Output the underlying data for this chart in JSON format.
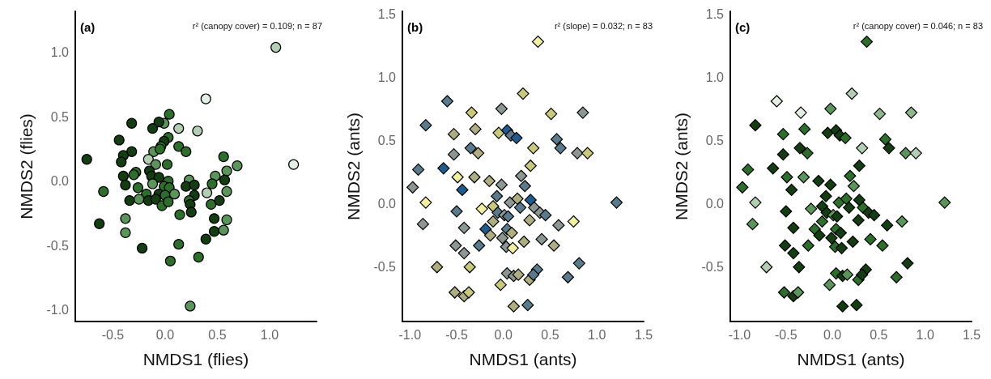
{
  "chart_data": [
    {
      "type": "scatter",
      "marker": "circle",
      "xlabel": "NMDS1 (flies)",
      "ylabel": "NMDS2 (flies)",
      "annotations": [
        "(a)",
        "r² (canopy cover) = 0.109; n = 87"
      ],
      "xlim": [
        -0.86,
        1.45
      ],
      "ylim": [
        -1.09,
        1.32
      ],
      "xticks": [
        {
          "value": -0.5,
          "label": "-0.5"
        },
        {
          "value": 0,
          "label": "0.0"
        },
        {
          "value": 0.5,
          "label": "0.5"
        },
        {
          "value": 1,
          "label": "1.0"
        }
      ],
      "yticks": [
        {
          "value": -1,
          "label": "-1.0"
        },
        {
          "value": -0.5,
          "label": "-0.5"
        },
        {
          "value": 0,
          "label": "0.0"
        },
        {
          "value": 0.5,
          "label": "0.5"
        },
        {
          "value": 1,
          "label": "1.0"
        }
      ],
      "x": [
        1.06,
        0.39,
        1.23,
        0.04,
        -0.01,
        -0.06,
        -0.32,
        -0.12,
        0.13,
        0.31,
        -0.44,
        0.03,
        -0.01,
        -0.04,
        0.13,
        0.2,
        -0.11,
        -0.05,
        -0.32,
        -0.4,
        -0.16,
        -0.42,
        -0.75,
        -0.09,
        0.02,
        0.56,
        0.69,
        0.59,
        0.48,
        0.57,
        -0.28,
        -0.4,
        -0.3,
        -0.15,
        -0.13,
        -0.06,
        0.03,
        -0.12,
        -0.38,
        -0.26,
        -0.01,
        0.04,
        0.23,
        0.2,
        0.28,
        0.45,
        0.4,
        0.59,
        -0.59,
        -0.18,
        -0.06,
        0.0,
        0.09,
        0.28,
        -0.34,
        -0.25,
        -0.16,
        -0.09,
        -0.03,
        0.03,
        0.23,
        0.24,
        0.44,
        0.52,
        0.25,
        0.14,
        -0.38,
        0.47,
        0.59,
        -0.63,
        -0.38,
        0.47,
        0.56,
        0.39,
        -0.22,
        0.13,
        0.32,
        0.05,
        0.24
      ],
      "values": [
        1.04,
        0.64,
        0.13,
        0.52,
        0.45,
        0.46,
        0.45,
        0.41,
        0.41,
        0.39,
        0.32,
        0.34,
        0.31,
        0.27,
        0.27,
        0.23,
        0.23,
        0.25,
        0.23,
        0.2,
        0.17,
        0.15,
        0.17,
        0.13,
        0.13,
        0.19,
        0.12,
        0.08,
        0.04,
        0.01,
        0.07,
        0.04,
        0.05,
        0.08,
        0.04,
        0.03,
        0.0,
        -0.02,
        -0.03,
        -0.05,
        -0.04,
        -0.05,
        0.01,
        -0.04,
        -0.03,
        -0.02,
        -0.09,
        -0.08,
        -0.08,
        -0.1,
        -0.1,
        -0.11,
        -0.1,
        -0.11,
        -0.15,
        -0.14,
        -0.15,
        -0.14,
        -0.19,
        -0.16,
        -0.15,
        -0.18,
        -0.18,
        -0.15,
        -0.24,
        -0.26,
        -0.29,
        -0.29,
        -0.3,
        -0.33,
        -0.4,
        -0.39,
        -0.38,
        -0.45,
        -0.52,
        -0.49,
        -0.59,
        -0.62,
        -0.97
      ],
      "colors": [
        "#b4ceb4",
        "#e4eee4",
        "#e4eee4",
        "#2d6e2d",
        "#5c955c",
        "#143d14",
        "#143d14",
        "#143d14",
        "#b4ceb4",
        "#b4ceb4",
        "#143d14",
        "#2d6e2d",
        "#143d14",
        "#2d6e2d",
        "#2d6e2d",
        "#2d6e2d",
        "#5c955c",
        "#2d6e2d",
        "#143d14",
        "#143d14",
        "#b4ceb4",
        "#143d14",
        "#143d14",
        "#5c955c",
        "#2d6e2d",
        "#2d6e2d",
        "#5c955c",
        "#5c955c",
        "#5c955c",
        "#143d14",
        "#2d6e2d",
        "#143d14",
        "#2d6e2d",
        "#143d14",
        "#143d14",
        "#143d14",
        "#2d6e2d",
        "#5c955c",
        "#143d14",
        "#2d6e2d",
        "#2d6e2d",
        "#2d6e2d",
        "#5c955c",
        "#143d14",
        "#143d14",
        "#2d6e2d",
        "#b4ceb4",
        "#5c955c",
        "#2d6e2d",
        "#2d6e2d",
        "#143d14",
        "#2d6e2d",
        "#5c955c",
        "#143d14",
        "#143d14",
        "#5c955c",
        "#143d14",
        "#143d14",
        "#2d6e2d",
        "#2d6e2d",
        "#2d6e2d",
        "#143d14",
        "#2d6e2d",
        "#143d14",
        "#143d14",
        "#2d6e2d",
        "#5c955c",
        "#143d14",
        "#5c955c",
        "#143d14",
        "#5c955c",
        "#143d14",
        "#5c955c",
        "#143d14",
        "#143d14",
        "#2d6e2d",
        "#2d6e2d",
        "#2d6e2d",
        "#5c955c"
      ]
    },
    {
      "type": "scatter",
      "marker": "diamond",
      "xlabel": "NMDS1 (ants)",
      "ylabel": "NMDS2 (ants)",
      "annotations": [
        "(b)",
        "r² (slope) = 0.032; n = 83"
      ],
      "xlim": [
        -1.08,
        1.5
      ],
      "ylim": [
        -0.93,
        1.52
      ],
      "xticks": [
        {
          "value": -1,
          "label": "-1.0"
        },
        {
          "value": -0.5,
          "label": "-0.5"
        },
        {
          "value": 0,
          "label": "0.0"
        },
        {
          "value": 0.5,
          "label": "0.5"
        },
        {
          "value": 1,
          "label": "1.0"
        },
        {
          "value": 1.5,
          "label": "1.5"
        }
      ],
      "yticks": [
        {
          "value": -0.5,
          "label": "-0.5"
        },
        {
          "value": 0,
          "label": "0.0"
        },
        {
          "value": 0.5,
          "label": "0.5"
        },
        {
          "value": 1,
          "label": "1.0"
        },
        {
          "value": 1.5,
          "label": "1.5"
        }
      ],
      "x": [
        0.37,
        0.21,
        -0.6,
        -0.02,
        -0.34,
        0.51,
        0.85,
        -0.83,
        -0.3,
        -0.53,
        -0.05,
        0.04,
        0.08,
        0.14,
        0.57,
        0.61,
        -0.35,
        -0.27,
        0.32,
        -0.53,
        0.79,
        0.9,
        0.29,
        -0.91,
        -0.64,
        -0.49,
        -0.31,
        -0.15,
        0.19,
        -0.02,
        0.23,
        -0.97,
        -0.44,
        -0.07,
        -0.83,
        0.07,
        0.15,
        0.29,
        1.21,
        -0.5,
        -0.23,
        -0.11,
        -0.06,
        0.18,
        0.33,
        0.39,
        0.45,
        0.01,
        0.05,
        -0.86,
        -0.11,
        0.28,
        0.59,
        0.75,
        -0.42,
        -0.19,
        0.04,
        -0.14,
        0.09,
        -0.01,
        0.41,
        -0.51,
        -0.26,
        0.03,
        0.1,
        0.22,
        0.54,
        -0.42,
        -0.71,
        -0.36,
        0.81,
        0.04,
        0.11,
        0.16,
        0.28,
        0.36,
        0.32,
        0.69,
        -0.03,
        -0.52,
        -0.42,
        -0.37,
        0.11,
        0.26
      ],
      "values": [
        1.28,
        0.87,
        0.81,
        0.75,
        0.72,
        0.71,
        0.72,
        0.62,
        0.59,
        0.55,
        0.56,
        0.58,
        0.54,
        0.52,
        0.51,
        0.44,
        0.44,
        0.4,
        0.44,
        0.39,
        0.4,
        0.4,
        0.3,
        0.27,
        0.28,
        0.21,
        0.21,
        0.18,
        0.22,
        0.15,
        0.14,
        0.13,
        0.11,
        0.06,
        0.01,
        0.01,
        0.04,
        0.03,
        0.01,
        -0.06,
        -0.04,
        -0.02,
        -0.07,
        -0.03,
        -0.03,
        -0.07,
        -0.09,
        -0.09,
        -0.1,
        -0.16,
        -0.14,
        -0.13,
        -0.17,
        -0.14,
        -0.19,
        -0.2,
        -0.2,
        -0.25,
        -0.23,
        -0.27,
        -0.28,
        -0.33,
        -0.33,
        -0.34,
        -0.35,
        -0.3,
        -0.33,
        -0.39,
        -0.5,
        -0.5,
        -0.47,
        -0.55,
        -0.57,
        -0.56,
        -0.6,
        -0.52,
        -0.56,
        -0.58,
        -0.64,
        -0.7,
        -0.73,
        -0.7,
        -0.81,
        -0.8
      ],
      "colors": [
        "#f2f0a0",
        "#c9c97e",
        "#5b7b8c",
        "#8c9693",
        "#c9c97e",
        "#c9c97e",
        "#8c9693",
        "#5b7b8c",
        "#aeae82",
        "#aeae82",
        "#c9c97e",
        "#1f5b8c",
        "#5b7b8c",
        "#1f5b8c",
        "#5b7b8c",
        "#5b7b8c",
        "#5b7b8c",
        "#aeae82",
        "#c9c97e",
        "#8c9693",
        "#8c9693",
        "#c9c97e",
        "#c9c97e",
        "#5b7b8c",
        "#1f5b8c",
        "#f2f0a0",
        "#aeae82",
        "#aeae82",
        "#8c9693",
        "#8c9693",
        "#5b7b8c",
        "#8c9693",
        "#1f5b8c",
        "#5b7b8c",
        "#f2f0a0",
        "#8c9693",
        "#aeae82",
        "#1f5b8c",
        "#5b7b8c",
        "#5b7b8c",
        "#f2f0a0",
        "#c9c97e",
        "#5b7b8c",
        "#5b7b8c",
        "#8c9693",
        "#8c9693",
        "#5b7b8c",
        "#8c9693",
        "#5b7b8c",
        "#8c9693",
        "#aeae82",
        "#aeae82",
        "#8c9693",
        "#f2f0a0",
        "#8c9693",
        "#1f5b8c",
        "#5b7b8c",
        "#aeae82",
        "#aeae82",
        "#8c9693",
        "#8c9693",
        "#8c9693",
        "#5b7b8c",
        "#8c9693",
        "#f2f0a0",
        "#aeae82",
        "#aeae82",
        "#8c9693",
        "#aeae82",
        "#c9c97e",
        "#5b7b8c",
        "#8c9693",
        "#8c9693",
        "#aeae82",
        "#aeae82",
        "#5b7b8c",
        "#5b7b8c",
        "#5b7b8c",
        "#c9c97e",
        "#aeae82",
        "#aeae82",
        "#c9c97e",
        "#aeae82",
        "#5b7b8c"
      ]
    },
    {
      "type": "scatter",
      "marker": "diamond",
      "xlabel": "NMDS1 (ants)",
      "ylabel": "NMDS2 (ants)",
      "annotations": [
        "(c)",
        "r² (canopy cover) = 0.046; n = 83"
      ],
      "xlim": [
        -1.1,
        1.5
      ],
      "ylim": [
        -0.93,
        1.52
      ],
      "xticks": [
        {
          "value": -1,
          "label": "-1.0"
        },
        {
          "value": -0.5,
          "label": "-0.5"
        },
        {
          "value": 0,
          "label": "0.0"
        },
        {
          "value": 0.5,
          "label": "0.5"
        },
        {
          "value": 1,
          "label": "1.0"
        },
        {
          "value": 1.5,
          "label": "1.5"
        }
      ],
      "yticks": [
        {
          "value": -0.5,
          "label": "-0.5"
        },
        {
          "value": 0,
          "label": "0.0"
        },
        {
          "value": 0.5,
          "label": "0.5"
        },
        {
          "value": 1,
          "label": "1.0"
        },
        {
          "value": 1.5,
          "label": "1.5"
        }
      ],
      "x": [
        0.37,
        0.21,
        -0.6,
        -0.02,
        -0.34,
        0.51,
        0.85,
        -0.83,
        -0.3,
        -0.53,
        -0.05,
        0.04,
        0.08,
        0.14,
        0.57,
        0.61,
        -0.35,
        -0.27,
        0.32,
        -0.53,
        0.79,
        0.9,
        0.29,
        -0.91,
        -0.64,
        -0.49,
        -0.31,
        -0.15,
        0.19,
        -0.02,
        0.23,
        -0.97,
        -0.44,
        -0.07,
        -0.83,
        0.07,
        0.15,
        0.29,
        1.21,
        -0.5,
        -0.23,
        -0.11,
        -0.06,
        0.18,
        0.33,
        0.39,
        0.45,
        0.01,
        0.05,
        -0.86,
        -0.11,
        0.28,
        0.59,
        0.75,
        -0.42,
        -0.19,
        0.04,
        -0.14,
        0.09,
        -0.01,
        0.41,
        -0.51,
        -0.26,
        0.03,
        0.1,
        0.22,
        0.54,
        -0.42,
        -0.71,
        -0.36,
        0.81,
        0.04,
        0.11,
        0.16,
        0.28,
        0.36,
        0.32,
        0.69,
        -0.03,
        -0.52,
        -0.42,
        -0.37,
        0.11,
        0.26
      ],
      "values": [
        1.28,
        0.87,
        0.81,
        0.75,
        0.72,
        0.71,
        0.72,
        0.62,
        0.59,
        0.55,
        0.56,
        0.58,
        0.54,
        0.52,
        0.51,
        0.44,
        0.44,
        0.4,
        0.44,
        0.39,
        0.4,
        0.4,
        0.3,
        0.27,
        0.28,
        0.21,
        0.21,
        0.18,
        0.22,
        0.15,
        0.14,
        0.13,
        0.11,
        0.06,
        0.01,
        0.01,
        0.04,
        0.03,
        0.01,
        -0.06,
        -0.04,
        -0.02,
        -0.07,
        -0.03,
        -0.03,
        -0.07,
        -0.09,
        -0.09,
        -0.1,
        -0.16,
        -0.14,
        -0.13,
        -0.17,
        -0.14,
        -0.19,
        -0.2,
        -0.2,
        -0.25,
        -0.23,
        -0.27,
        -0.28,
        -0.33,
        -0.33,
        -0.34,
        -0.35,
        -0.3,
        -0.33,
        -0.39,
        -0.5,
        -0.5,
        -0.47,
        -0.55,
        -0.57,
        -0.56,
        -0.6,
        -0.52,
        -0.56,
        -0.58,
        -0.64,
        -0.7,
        -0.73,
        -0.7,
        -0.81,
        -0.8
      ],
      "colors": [
        "#2d6e2d",
        "#b4ceb4",
        "#e4eee4",
        "#5c955c",
        "#e4eee4",
        "#8fb58f",
        "#8fb58f",
        "#143d14",
        "#2d6e2d",
        "#2d6e2d",
        "#143d14",
        "#143d14",
        "#143d14",
        "#2d6e2d",
        "#2d6e2d",
        "#143d14",
        "#143d14",
        "#2d6e2d",
        "#b4ceb4",
        "#143d14",
        "#5c955c",
        "#b4ceb4",
        "#143d14",
        "#2d6e2d",
        "#143d14",
        "#2d6e2d",
        "#5c955c",
        "#143d14",
        "#2d6e2d",
        "#143d14",
        "#5c955c",
        "#2d6e2d",
        "#143d14",
        "#143d14",
        "#b4ceb4",
        "#2d6e2d",
        "#2d6e2d",
        "#143d14",
        "#5c955c",
        "#143d14",
        "#5c955c",
        "#143d14",
        "#143d14",
        "#143d14",
        "#2d6e2d",
        "#143d14",
        "#143d14",
        "#5c955c",
        "#143d14",
        "#5c955c",
        "#2d6e2d",
        "#143d14",
        "#143d14",
        "#5c955c",
        "#143d14",
        "#2d6e2d",
        "#2d6e2d",
        "#143d14",
        "#143d14",
        "#143d14",
        "#2d6e2d",
        "#143d14",
        "#2d6e2d",
        "#2d6e2d",
        "#143d14",
        "#143d14",
        "#2d6e2d",
        "#143d14",
        "#b4ceb4",
        "#143d14",
        "#143d14",
        "#2d6e2d",
        "#143d14",
        "#5c955c",
        "#2d6e2d",
        "#143d14",
        "#143d14",
        "#2d6e2d",
        "#5c955c",
        "#2d6e2d",
        "#143d14",
        "#5c955c",
        "#143d14",
        "#143d14"
      ]
    }
  ]
}
